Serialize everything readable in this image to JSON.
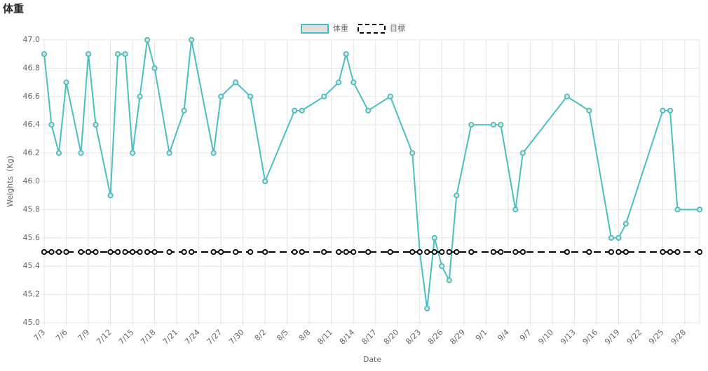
{
  "chart_data": {
    "type": "line",
    "title": "体重",
    "x_label": "Date",
    "y_label": "Weights（Kg)",
    "x": [
      "7/3",
      "7/4",
      "7/5",
      "7/6",
      "7/8",
      "7/9",
      "7/10",
      "7/12",
      "7/13",
      "7/14",
      "7/15",
      "7/16",
      "7/17",
      "7/18",
      "7/20",
      "7/22",
      "7/23",
      "7/26",
      "7/27",
      "7/29",
      "7/31",
      "8/2",
      "8/6",
      "8/7",
      "8/10",
      "8/12",
      "8/13",
      "8/14",
      "8/16",
      "8/19",
      "8/22",
      "8/23",
      "8/24",
      "8/25",
      "8/26",
      "8/27",
      "8/28",
      "8/30",
      "9/2",
      "9/3",
      "9/5",
      "9/6",
      "9/12",
      "9/15",
      "9/18",
      "9/19",
      "9/20",
      "9/25",
      "9/26",
      "9/27",
      "9/30"
    ],
    "series": [
      {
        "name": "体重",
        "color": "#4bbfbf",
        "fill": "#e0e0e0",
        "dashed": false,
        "values": [
          46.9,
          46.4,
          46.2,
          46.7,
          46.2,
          46.9,
          46.4,
          45.9,
          46.9,
          46.9,
          46.2,
          46.6,
          47.0,
          46.8,
          46.2,
          46.5,
          47.0,
          46.2,
          46.6,
          46.7,
          46.6,
          46.0,
          46.5,
          46.5,
          46.6,
          46.7,
          46.9,
          46.7,
          46.5,
          46.6,
          46.2,
          45.5,
          45.1,
          45.6,
          45.4,
          45.3,
          45.9,
          46.4,
          46.4,
          46.4,
          45.8,
          46.2,
          46.6,
          46.5,
          45.6,
          45.6,
          45.7,
          46.5,
          46.5,
          45.8,
          45.8
        ]
      },
      {
        "name": "目標",
        "color": "#000000",
        "fill": "#ffffff",
        "dashed": true,
        "values": [
          45.5,
          45.5,
          45.5,
          45.5,
          45.5,
          45.5,
          45.5,
          45.5,
          45.5,
          45.5,
          45.5,
          45.5,
          45.5,
          45.5,
          45.5,
          45.5,
          45.5,
          45.5,
          45.5,
          45.5,
          45.5,
          45.5,
          45.5,
          45.5,
          45.5,
          45.5,
          45.5,
          45.5,
          45.5,
          45.5,
          45.5,
          45.5,
          45.5,
          45.5,
          45.5,
          45.5,
          45.5,
          45.5,
          45.5,
          45.5,
          45.5,
          45.5,
          45.5,
          45.5,
          45.5,
          45.5,
          45.5,
          45.5,
          45.5,
          45.5,
          45.5
        ]
      }
    ],
    "xlim": [
      "7/3",
      "9/30"
    ],
    "xticks": [
      "7/3",
      "7/6",
      "7/9",
      "7/12",
      "7/15",
      "7/18",
      "7/21",
      "7/24",
      "7/27",
      "7/30",
      "8/2",
      "8/5",
      "8/8",
      "8/11",
      "8/14",
      "8/17",
      "8/20",
      "8/23",
      "8/26",
      "8/29",
      "9/1",
      "9/4",
      "9/7",
      "9/10",
      "9/13",
      "9/16",
      "9/19",
      "9/22",
      "9/25",
      "9/28"
    ],
    "ylim": [
      45.0,
      47.0
    ],
    "yticks": [
      {
        "value": 45.0,
        "label": "45.0"
      },
      45.2,
      45.4,
      45.6,
      45.8,
      {
        "value": 46.0,
        "label": "46.0"
      },
      46.2,
      46.4,
      46.6,
      46.8,
      {
        "value": 47.0,
        "label": "47.0"
      }
    ],
    "grid": true,
    "legend": "top"
  }
}
